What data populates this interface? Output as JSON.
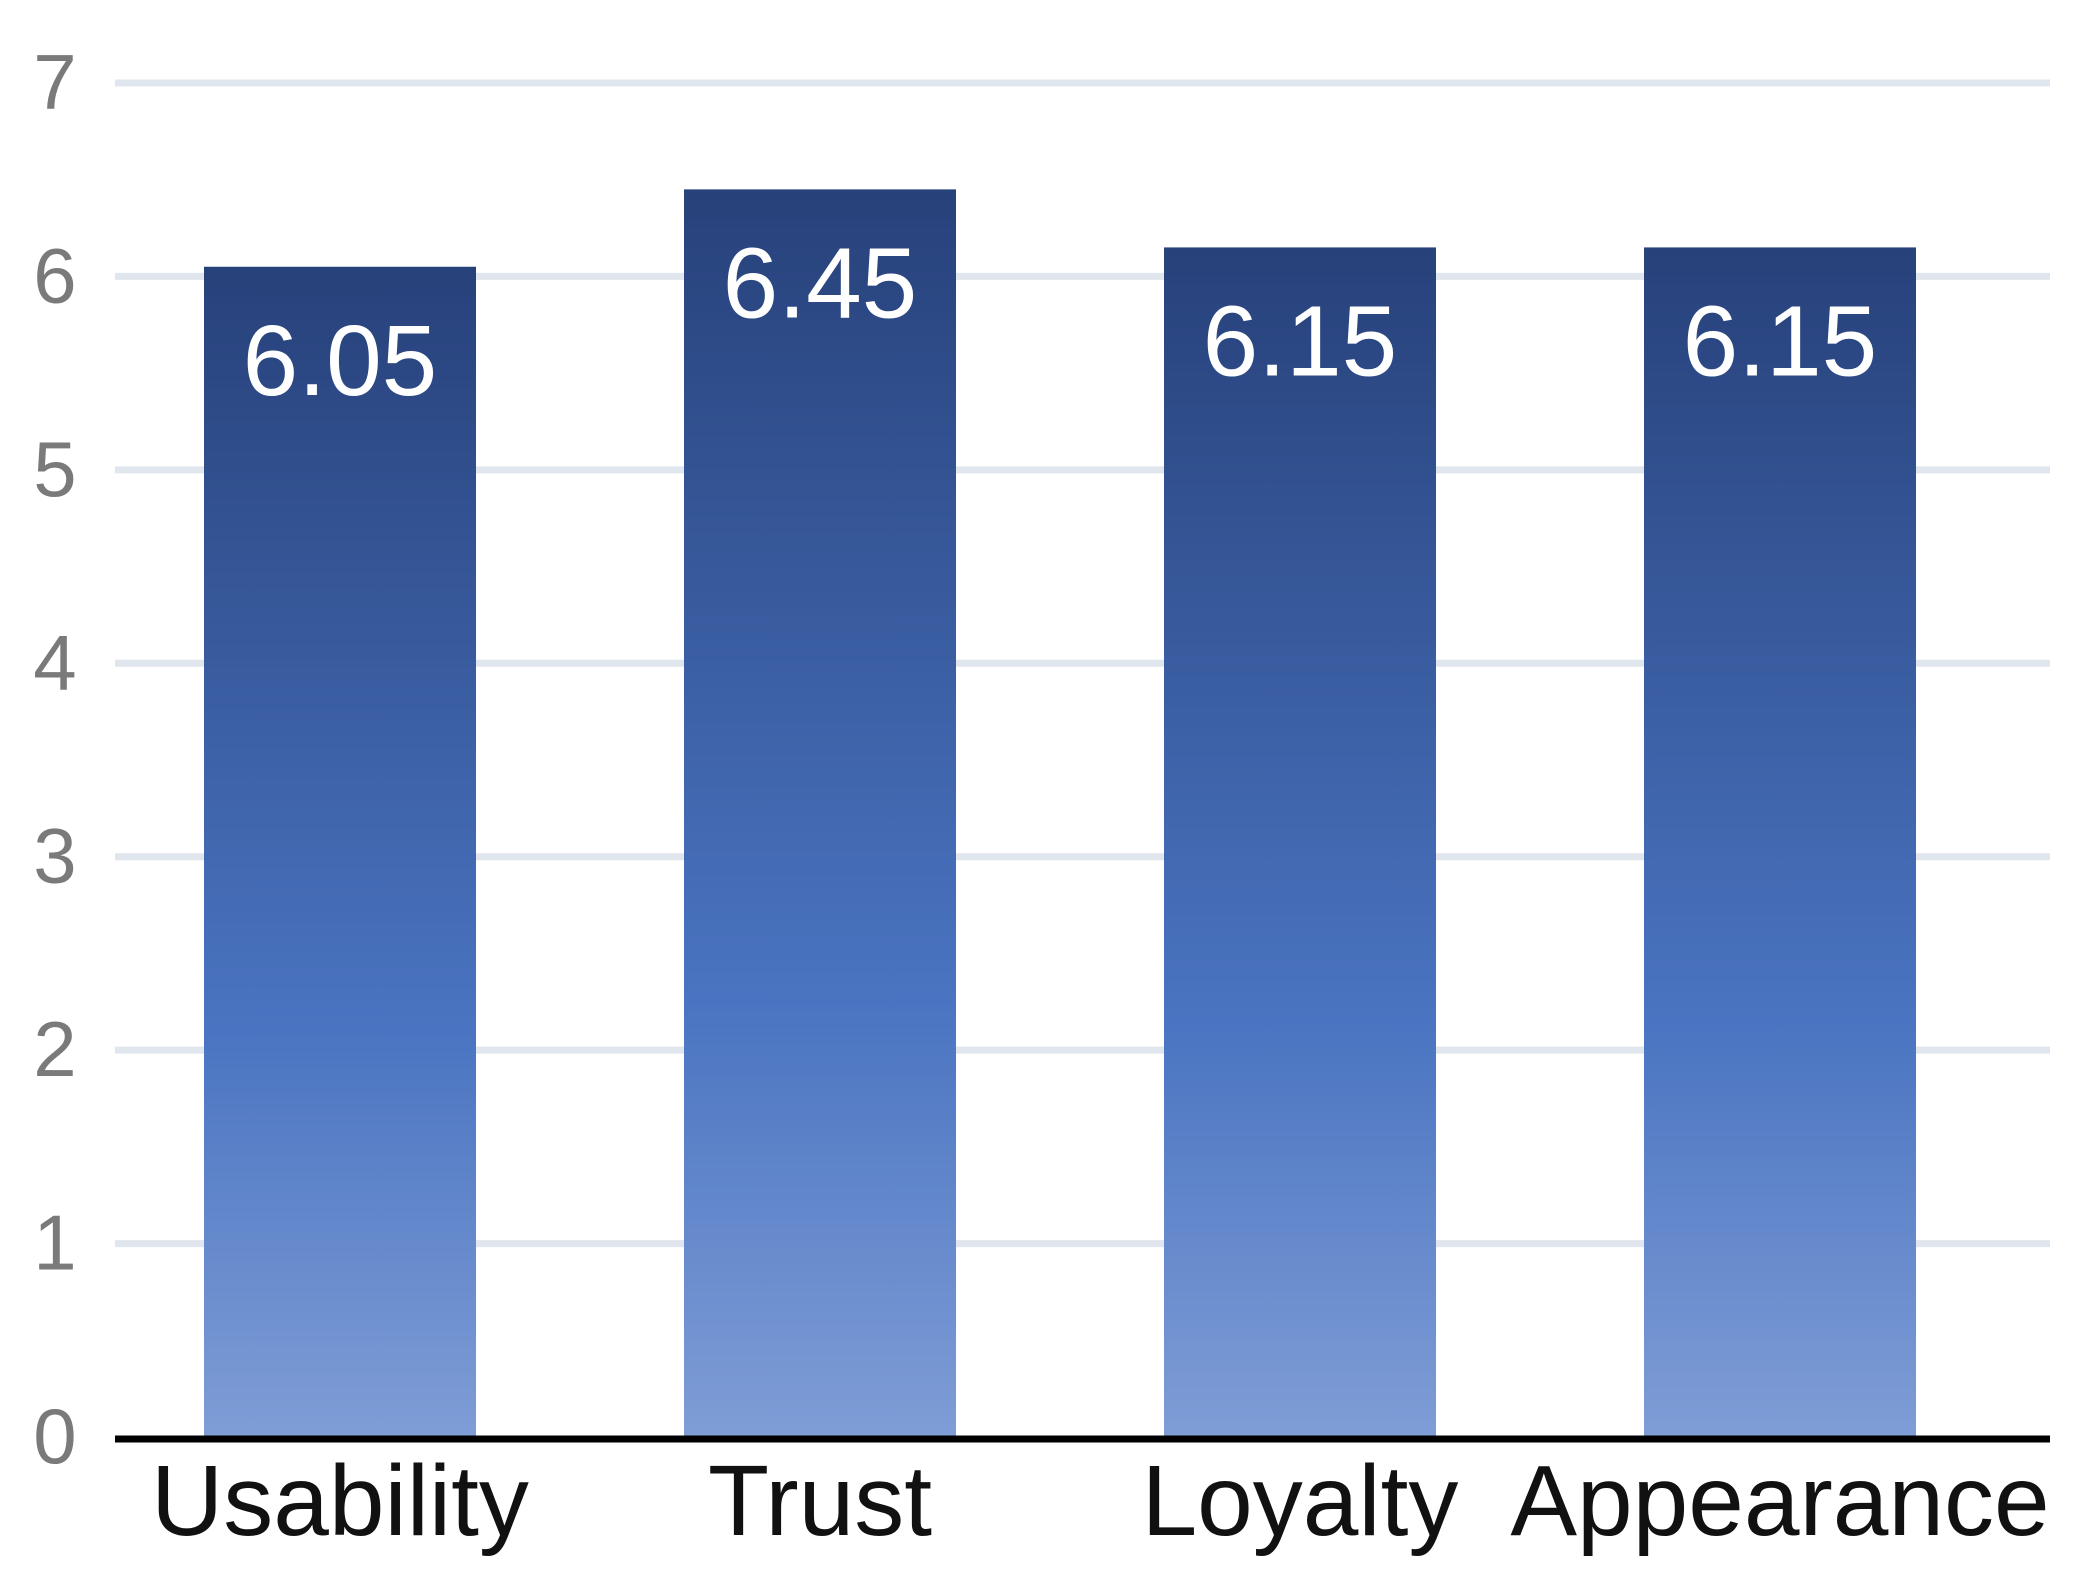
{
  "chart_data": {
    "type": "bar",
    "categories": [
      "Usability",
      "Trust",
      "Loyalty",
      "Appearance"
    ],
    "values": [
      6.05,
      6.45,
      6.15,
      6.15
    ],
    "data_labels": [
      "6.05",
      "6.45",
      "6.15",
      "6.15"
    ],
    "title": "",
    "xlabel": "",
    "ylabel": "",
    "ylim": [
      0,
      7
    ],
    "yticks": [
      0,
      1,
      2,
      3,
      4,
      5,
      6,
      7
    ],
    "ytick_labels": [
      "0",
      "1",
      "2",
      "3",
      "4",
      "5",
      "6",
      "7"
    ],
    "grid": true,
    "legend": "none"
  },
  "colors": {
    "bar_top": "#27417a",
    "bar_mid": "#4a74c1",
    "bar_bottom": "#7f9dd6",
    "gridline": "#e0e6ee",
    "axis": "#000000",
    "tick_text": "#7a7a7a",
    "category_text": "#111111",
    "data_label_text": "#ffffff"
  }
}
